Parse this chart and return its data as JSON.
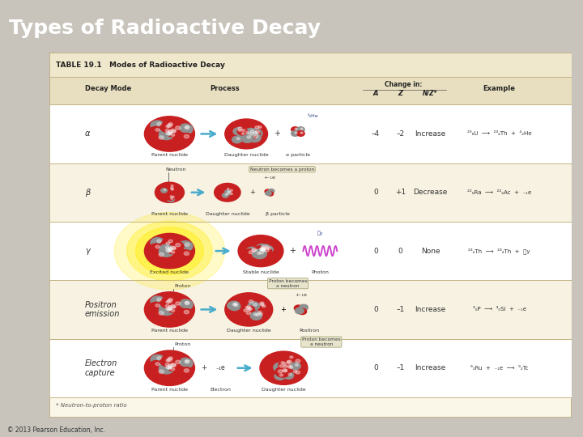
{
  "title": "Types of Radioactive Decay",
  "title_bg_color": "#3a3a9a",
  "title_text_color": "#ffffff",
  "title_fontsize": 18,
  "bg_color": "#c8c4bc",
  "table_bg_color": "#faf6e8",
  "table_border_color": "#b8a878",
  "table_title": "TABLE 19.1   Modes of Radioactive Decay",
  "copyright": "© 2013 Pearson Education, Inc.",
  "rows": [
    {
      "mode": "α",
      "A": "–4",
      "Z": "–2",
      "NZ": "Increase",
      "example": "²³₈U  ⟶  ²³₄Th  +  ⁴₂He"
    },
    {
      "mode": "β",
      "A": "0",
      "Z": "+1",
      "NZ": "Decrease",
      "example": "²²₆Ra  ⟶  ²²₆Ac  +  ₋₁e"
    },
    {
      "mode": "γ",
      "A": "0",
      "Z": "0",
      "NZ": "None",
      "example": "²³₄Th  ⟶  ²³₄Th  +  ᵯy"
    },
    {
      "mode": "Positron\nemission",
      "A": "0",
      "Z": "–1",
      "NZ": "Increase",
      "example": "³₀P  ⟶  ³₀Si  +  ₋₁e"
    },
    {
      "mode": "Electron\ncapture",
      "A": "0",
      "Z": "–1",
      "NZ": "Increase",
      "example": "⁹₂Ru  +  ₋₁e  ⟶  ⁹₂Tc"
    }
  ],
  "footnote": "* Neutron-to-proton ratio",
  "nucleus_red": "#c82020",
  "nucleus_gray": "#909090",
  "arrow_color": "#4aaccc",
  "header_bg": "#e8dfc0",
  "title_row_bg": "#f0e8cc"
}
